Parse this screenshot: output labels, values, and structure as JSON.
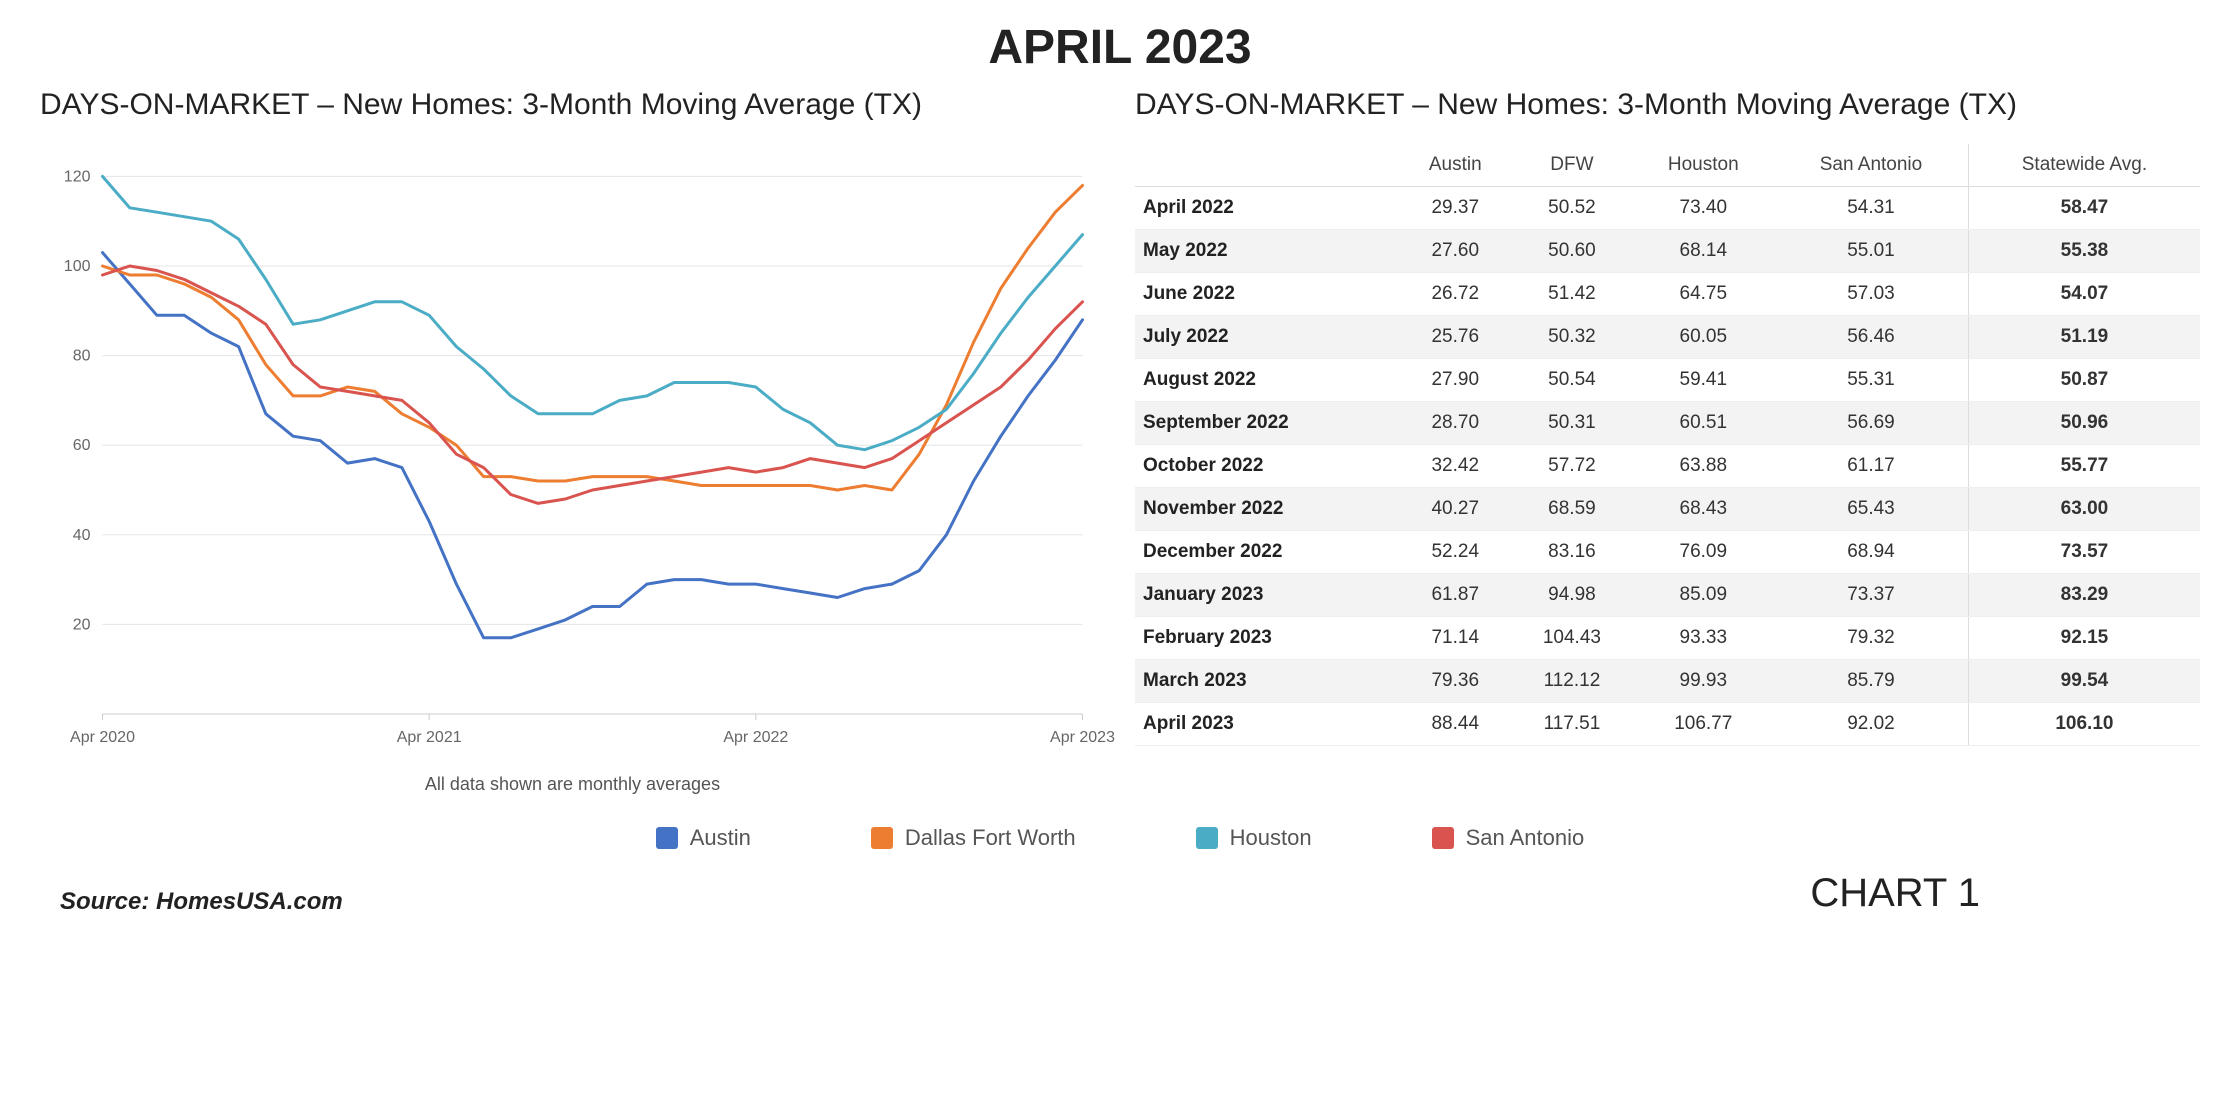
{
  "main_title": "APRIL 2023",
  "chart_title": "DAYS-ON-MARKET – New Homes: 3-Month Moving Average (TX)",
  "table_title": "DAYS-ON-MARKET – New Homes:  3-Month Moving Average (TX)",
  "subcaption": "All data shown are monthly averages",
  "source_label": "Source: HomesUSA.com",
  "chart_number_label": "CHART 1",
  "chart": {
    "type": "line",
    "background_color": "#ffffff",
    "grid_color": "#e5e5e5",
    "axis_color": "#cccccc",
    "label_color": "#666666",
    "label_fontsize": 16,
    "line_width": 3,
    "ylim": [
      0,
      125
    ],
    "ytick_step": 20,
    "yticks": [
      20,
      40,
      60,
      80,
      100,
      120
    ],
    "x_labels": [
      "Apr 2020",
      "Apr 2021",
      "Apr 2022",
      "Apr 2023"
    ],
    "x_label_indices": [
      0,
      12,
      24,
      36
    ],
    "n_points": 37,
    "series": [
      {
        "name": "Austin",
        "color": "#4472c4",
        "values": [
          103,
          96,
          89,
          89,
          85,
          82,
          67,
          62,
          61,
          56,
          57,
          55,
          43,
          29,
          17,
          17,
          19,
          21,
          24,
          24,
          29,
          30,
          30,
          29,
          29,
          28,
          27,
          26,
          28,
          29,
          32,
          40,
          52,
          62,
          71,
          79,
          88
        ]
      },
      {
        "name": "Dallas Fort Worth",
        "color": "#ed7d31",
        "values": [
          100,
          98,
          98,
          96,
          93,
          88,
          78,
          71,
          71,
          73,
          72,
          67,
          64,
          60,
          53,
          53,
          52,
          52,
          53,
          53,
          53,
          52,
          51,
          51,
          51,
          51,
          51,
          50,
          51,
          50,
          58,
          69,
          83,
          95,
          104,
          112,
          118
        ]
      },
      {
        "name": "Houston",
        "color": "#4bacc6",
        "values": [
          120,
          113,
          112,
          111,
          110,
          106,
          97,
          87,
          88,
          90,
          92,
          92,
          89,
          82,
          77,
          71,
          67,
          67,
          67,
          70,
          71,
          74,
          74,
          74,
          73,
          68,
          65,
          60,
          59,
          61,
          64,
          68,
          76,
          85,
          93,
          100,
          107
        ]
      },
      {
        "name": "San Antonio",
        "color": "#d9534f",
        "values": [
          98,
          100,
          99,
          97,
          94,
          91,
          87,
          78,
          73,
          72,
          71,
          70,
          65,
          58,
          55,
          49,
          47,
          48,
          50,
          51,
          52,
          53,
          54,
          55,
          54,
          55,
          57,
          56,
          55,
          57,
          61,
          65,
          69,
          73,
          79,
          86,
          92
        ]
      }
    ]
  },
  "legend": [
    {
      "label": "Austin",
      "color": "#4472c4"
    },
    {
      "label": "Dallas Fort Worth",
      "color": "#ed7d31"
    },
    {
      "label": "Houston",
      "color": "#4bacc6"
    },
    {
      "label": "San Antonio",
      "color": "#d9534f"
    }
  ],
  "table": {
    "columns": [
      "",
      "Austin",
      "DFW",
      "Houston",
      "San Antonio",
      "Statewide Avg."
    ],
    "rows": [
      [
        "April 2022",
        "29.37",
        "50.52",
        "73.40",
        "54.31",
        "58.47"
      ],
      [
        "May 2022",
        "27.60",
        "50.60",
        "68.14",
        "55.01",
        "55.38"
      ],
      [
        "June 2022",
        "26.72",
        "51.42",
        "64.75",
        "57.03",
        "54.07"
      ],
      [
        "July 2022",
        "25.76",
        "50.32",
        "60.05",
        "56.46",
        "51.19"
      ],
      [
        "August 2022",
        "27.90",
        "50.54",
        "59.41",
        "55.31",
        "50.87"
      ],
      [
        "September 2022",
        "28.70",
        "50.31",
        "60.51",
        "56.69",
        "50.96"
      ],
      [
        "October 2022",
        "32.42",
        "57.72",
        "63.88",
        "61.17",
        "55.77"
      ],
      [
        "November 2022",
        "40.27",
        "68.59",
        "68.43",
        "65.43",
        "63.00"
      ],
      [
        "December 2022",
        "52.24",
        "83.16",
        "76.09",
        "68.94",
        "73.57"
      ],
      [
        "January 2023",
        "61.87",
        "94.98",
        "85.09",
        "73.37",
        "83.29"
      ],
      [
        "February 2023",
        "71.14",
        "104.43",
        "93.33",
        "79.32",
        "92.15"
      ],
      [
        "March 2023",
        "79.36",
        "112.12",
        "99.93",
        "85.79",
        "99.54"
      ],
      [
        "April 2023",
        "88.44",
        "117.51",
        "106.77",
        "92.02",
        "106.10"
      ]
    ],
    "row_stripe_color": "#f3f3f3",
    "border_color": "#dddddd"
  }
}
